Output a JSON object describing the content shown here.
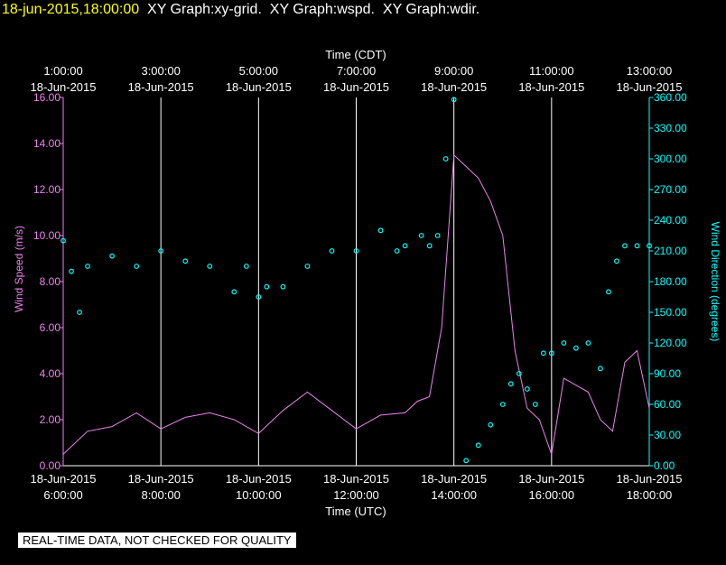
{
  "header": {
    "timestamp": "18-jun-2015,18:00:00",
    "graphs": [
      "XY Graph:xy-grid.",
      "XY Graph:wspd.",
      "XY Graph:wdir."
    ]
  },
  "colors": {
    "background": "#000000",
    "grid": "#ffffff",
    "wind_speed": "#ee82ee",
    "wind_direction": "#00ffff",
    "header_stamp": "#ffff00"
  },
  "footer": {
    "qc_notice": "REAL-TIME DATA, NOT CHECKED FOR QUALITY"
  },
  "chart_data": {
    "type": "line",
    "grid": true,
    "x_top": {
      "label": "Time (CDT)",
      "ticks": [
        {
          "time": "1:00:00",
          "date": "18-Jun-2015"
        },
        {
          "time": "3:00:00",
          "date": "18-Jun-2015"
        },
        {
          "time": "5:00:00",
          "date": "18-Jun-2015"
        },
        {
          "time": "7:00:00",
          "date": "18-Jun-2015"
        },
        {
          "time": "9:00:00",
          "date": "18-Jun-2015"
        },
        {
          "time": "11:00:00",
          "date": "18-Jun-2015"
        },
        {
          "time": "13:00:00",
          "date": "18-Jun-2015"
        }
      ]
    },
    "x_bottom": {
      "label": "Time (UTC)",
      "range": [
        "18-Jun-2015 06:00",
        "18-Jun-2015 18:00"
      ],
      "ticks": [
        {
          "date": "18-Jun-2015",
          "time": "6:00:00"
        },
        {
          "date": "18-Jun-2015",
          "time": "8:00:00"
        },
        {
          "date": "18-Jun-2015",
          "time": "10:00:00"
        },
        {
          "date": "18-Jun-2015",
          "time": "12:00:00"
        },
        {
          "date": "18-Jun-2015",
          "time": "14:00:00"
        },
        {
          "date": "18-Jun-2015",
          "time": "16:00:00"
        },
        {
          "date": "18-Jun-2015",
          "time": "18:00:00"
        }
      ]
    },
    "y_left": {
      "label": "Wind Speed (m/s)",
      "range": [
        0,
        16
      ],
      "ticks": [
        "0.00",
        "2.00",
        "4.00",
        "6.00",
        "8.00",
        "10.00",
        "12.00",
        "14.00",
        "16.00"
      ]
    },
    "y_right": {
      "label": "Wind Direction (degrees)",
      "range": [
        0,
        360
      ],
      "ticks": [
        "0.00",
        "30.00",
        "60.00",
        "90.00",
        "120.00",
        "150.00",
        "180.00",
        "210.00",
        "240.00",
        "270.00",
        "300.00",
        "330.00",
        "360.00"
      ]
    },
    "series": [
      {
        "axis": "left",
        "style": "line",
        "x": [
          "06:00",
          "06:30",
          "07:00",
          "07:30",
          "08:00",
          "08:30",
          "09:00",
          "09:30",
          "10:00",
          "10:30",
          "11:00",
          "11:30",
          "12:00",
          "12:30",
          "13:00",
          "13:15",
          "13:30",
          "13:45",
          "14:00",
          "14:15",
          "14:30",
          "14:45",
          "15:00",
          "15:15",
          "15:30",
          "15:45",
          "16:00",
          "16:15",
          "16:30",
          "16:45",
          "17:00",
          "17:15",
          "17:30",
          "17:45",
          "18:00"
        ],
        "y": [
          0.5,
          1.5,
          1.7,
          2.3,
          1.6,
          2.1,
          2.3,
          2.0,
          1.4,
          2.4,
          3.2,
          2.4,
          1.6,
          2.2,
          2.3,
          2.8,
          3.0,
          6.0,
          13.5,
          13.0,
          12.5,
          11.5,
          10.0,
          5.0,
          2.5,
          2.0,
          0.5,
          3.8,
          3.5,
          3.2,
          2.0,
          1.5,
          4.5,
          5.0,
          2.5
        ]
      },
      {
        "axis": "right",
        "style": "points",
        "x": [
          "06:00",
          "06:10",
          "06:20",
          "06:30",
          "07:00",
          "07:30",
          "08:00",
          "08:30",
          "09:00",
          "09:30",
          "09:45",
          "10:00",
          "10:10",
          "10:30",
          "11:00",
          "11:30",
          "12:00",
          "12:30",
          "12:50",
          "13:00",
          "13:20",
          "13:30",
          "13:40",
          "13:50",
          "14:00",
          "14:15",
          "14:30",
          "14:45",
          "15:00",
          "15:10",
          "15:20",
          "15:30",
          "15:40",
          "15:50",
          "16:00",
          "16:15",
          "16:30",
          "16:45",
          "17:00",
          "17:10",
          "17:20",
          "17:30",
          "17:45",
          "18:00"
        ],
        "y": [
          220,
          190,
          150,
          195,
          205,
          195,
          210,
          200,
          195,
          170,
          195,
          165,
          175,
          175,
          195,
          210,
          210,
          230,
          210,
          215,
          225,
          215,
          225,
          300,
          358,
          5,
          20,
          40,
          60,
          80,
          90,
          75,
          60,
          110,
          110,
          120,
          115,
          120,
          95,
          170,
          200,
          215,
          215,
          215
        ]
      }
    ]
  }
}
